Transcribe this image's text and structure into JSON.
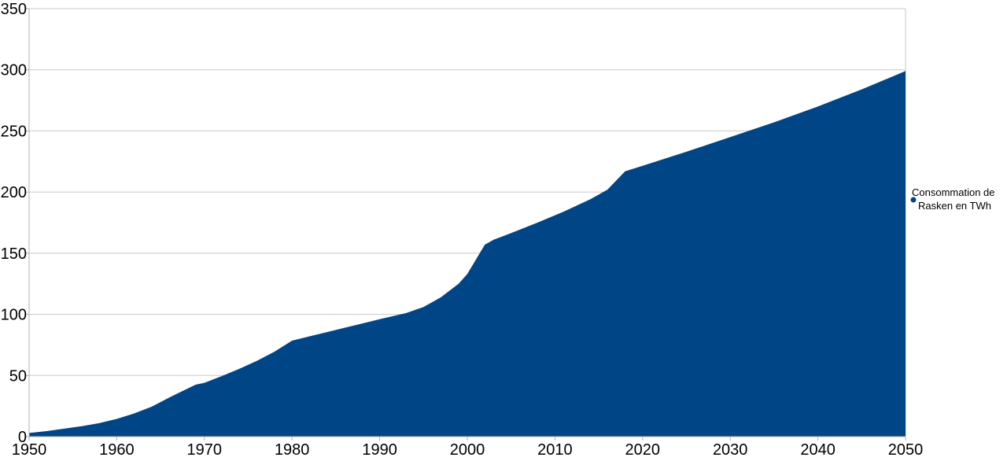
{
  "chart_data": {
    "type": "area",
    "title": "",
    "xlabel": "",
    "ylabel": "",
    "xlim": [
      1950,
      2050
    ],
    "ylim": [
      0,
      350
    ],
    "x_ticks": [
      1950,
      1960,
      1970,
      1980,
      1990,
      2000,
      2010,
      2020,
      2030,
      2040,
      2050
    ],
    "x_tick_labels": [
      "1950",
      "1960",
      "1970",
      "1980",
      "1990",
      "2000",
      "2010",
      "2020",
      "2030",
      "2040",
      "2050"
    ],
    "y_ticks": [
      0,
      50,
      100,
      150,
      200,
      250,
      300,
      350
    ],
    "y_tick_labels": [
      "0",
      "50",
      "100",
      "150",
      "200",
      "250",
      "300",
      "350"
    ],
    "grid": "horizontal",
    "legend_position": "right",
    "series": [
      {
        "name": "Consommation de Rasken en TWh",
        "color": "#004586",
        "x": [
          1950,
          1952,
          1954,
          1956,
          1958,
          1960,
          1962,
          1964,
          1966,
          1968,
          1969,
          1970,
          1972,
          1974,
          1976,
          1978,
          1980,
          1982,
          1984,
          1986,
          1988,
          1990,
          1993,
          1995,
          1997,
          1999,
          2000,
          2002,
          2003,
          2005,
          2008,
          2011,
          2014,
          2016,
          2018,
          2020,
          2025,
          2030,
          2035,
          2040,
          2045,
          2050
        ],
        "values": [
          3,
          4.5,
          6.5,
          8.5,
          11,
          14.5,
          19,
          24.5,
          32,
          39,
          42.5,
          44,
          49.5,
          55.5,
          62,
          69.5,
          78.5,
          82,
          85.5,
          89,
          92.5,
          96,
          101,
          106,
          114,
          125,
          133,
          157,
          161,
          166.5,
          175,
          184,
          194,
          202,
          217,
          221.5,
          233,
          245,
          257,
          270,
          284,
          299
        ]
      }
    ],
    "legend": {
      "labels": [
        "Consommation de",
        "Rasken en TWh"
      ]
    }
  }
}
